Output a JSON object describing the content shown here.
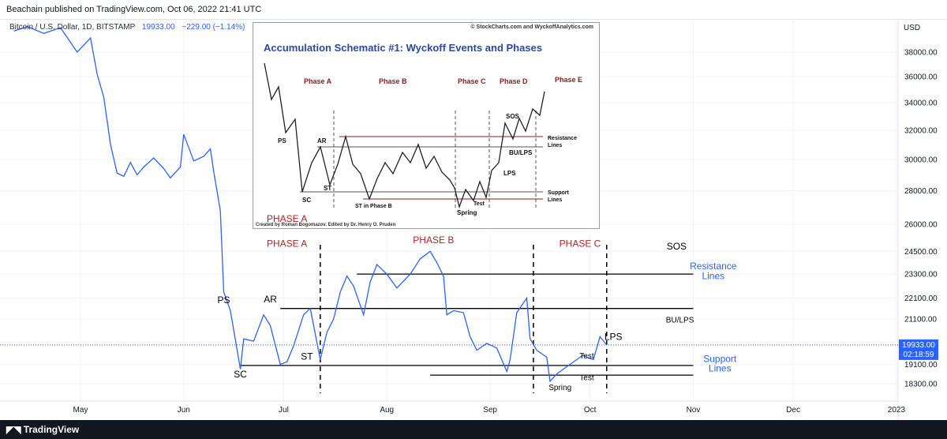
{
  "header": {
    "published": "Beachain published on TradingView.com, Oct 06, 2022 21:41 UTC",
    "symbol": "Bitcoin / U.S. Dollar, 1D, BITSTAMP",
    "price": "19933.00",
    "change": "−229.00 (−1.14%)"
  },
  "footer": {
    "brand": "TradingView"
  },
  "price_axis": {
    "unit": "USD",
    "current_price": "19933.00",
    "countdown": "02:18:59"
  },
  "chart_data": {
    "type": "line",
    "title": "",
    "xlabel": "",
    "ylabel": "USD",
    "log_scale": true,
    "grid": true,
    "x_ticks": [
      "May",
      "Jun",
      "Jul",
      "Aug",
      "Sep",
      "Oct",
      "Nov",
      "Dec",
      "2023"
    ],
    "y_ticks": [
      38000,
      36000,
      34000,
      32000,
      30000,
      28000,
      26000,
      24500,
      23300,
      22100,
      21100,
      19100,
      18300
    ],
    "ylim": [
      17500,
      40000
    ],
    "series": [
      {
        "color": "#2962ff",
        "points": [
          [
            "2022-04-11",
            39800
          ],
          [
            "2022-04-15",
            40200
          ],
          [
            "2022-04-20",
            39600
          ],
          [
            "2022-04-25",
            40100
          ],
          [
            "2022-04-30",
            38000
          ],
          [
            "2022-05-04",
            39200
          ],
          [
            "2022-05-06",
            36200
          ],
          [
            "2022-05-08",
            34400
          ],
          [
            "2022-05-10",
            31000
          ],
          [
            "2022-05-12",
            29100
          ],
          [
            "2022-05-14",
            28900
          ],
          [
            "2022-05-16",
            29800
          ],
          [
            "2022-05-18",
            29000
          ],
          [
            "2022-05-20",
            29500
          ],
          [
            "2022-05-23",
            30100
          ],
          [
            "2022-05-26",
            29400
          ],
          [
            "2022-05-28",
            28800
          ],
          [
            "2022-05-31",
            29500
          ],
          [
            "2022-06-01",
            31700
          ],
          [
            "2022-06-04",
            29900
          ],
          [
            "2022-06-07",
            30200
          ],
          [
            "2022-06-09",
            30700
          ],
          [
            "2022-06-10",
            29200
          ],
          [
            "2022-06-12",
            26800
          ],
          [
            "2022-06-13",
            22400
          ],
          [
            "2022-06-15",
            21500
          ],
          [
            "2022-06-16",
            20600
          ],
          [
            "2022-06-18",
            18900
          ],
          [
            "2022-06-19",
            20200
          ],
          [
            "2022-06-22",
            20100
          ],
          [
            "2022-06-25",
            21300
          ],
          [
            "2022-06-27",
            20800
          ],
          [
            "2022-06-30",
            19100
          ],
          [
            "2022-07-02",
            19200
          ],
          [
            "2022-07-04",
            19900
          ],
          [
            "2022-07-07",
            21300
          ],
          [
            "2022-07-09",
            21600
          ],
          [
            "2022-07-12",
            19300
          ],
          [
            "2022-07-14",
            20500
          ],
          [
            "2022-07-16",
            21100
          ],
          [
            "2022-07-18",
            22400
          ],
          [
            "2022-07-20",
            23200
          ],
          [
            "2022-07-22",
            22700
          ],
          [
            "2022-07-25",
            21300
          ],
          [
            "2022-07-27",
            22900
          ],
          [
            "2022-07-29",
            23800
          ],
          [
            "2022-08-01",
            23300
          ],
          [
            "2022-08-04",
            22600
          ],
          [
            "2022-08-08",
            23300
          ],
          [
            "2022-08-11",
            24100
          ],
          [
            "2022-08-14",
            24500
          ],
          [
            "2022-08-16",
            23900
          ],
          [
            "2022-08-18",
            23200
          ],
          [
            "2022-08-19",
            21300
          ],
          [
            "2022-08-21",
            21500
          ],
          [
            "2022-08-24",
            21400
          ],
          [
            "2022-08-26",
            20300
          ],
          [
            "2022-08-28",
            19700
          ],
          [
            "2022-08-31",
            20000
          ],
          [
            "2022-09-03",
            19800
          ],
          [
            "2022-09-06",
            18800
          ],
          [
            "2022-09-07",
            19300
          ],
          [
            "2022-09-09",
            21400
          ],
          [
            "2022-09-12",
            22100
          ],
          [
            "2022-09-13",
            20200
          ],
          [
            "2022-09-15",
            19700
          ],
          [
            "2022-09-18",
            19400
          ],
          [
            "2022-09-19",
            18400
          ],
          [
            "2022-09-21",
            18700
          ],
          [
            "2022-09-23",
            18900
          ],
          [
            "2022-09-26",
            19200
          ],
          [
            "2022-09-29",
            19500
          ],
          [
            "2022-09-30",
            19400
          ],
          [
            "2022-10-02",
            19300
          ],
          [
            "2022-10-04",
            20300
          ],
          [
            "2022-10-06",
            19930
          ]
        ]
      }
    ],
    "overlay_lines": [
      {
        "name": "Resistance Lines",
        "value": 23300,
        "from": "2022-07-23",
        "to": "2022-11-01"
      },
      {
        "name": "BU/LPS",
        "value": 21600,
        "from": "2022-06-30",
        "to": "2022-11-01"
      },
      {
        "name": "Support Lines",
        "value": 19050,
        "from": "2022-06-18",
        "to": "2022-11-01"
      },
      {
        "name": "Support Lines lower",
        "value": 18650,
        "from": "2022-08-14",
        "to": "2022-11-01"
      }
    ],
    "phase_dividers": [
      {
        "date": "2022-07-12"
      },
      {
        "date": "2022-09-14"
      },
      {
        "date": "2022-10-06"
      }
    ],
    "annotations": [
      {
        "text": "PHASE A",
        "date": "2022-07-02",
        "y": 24750,
        "color": "#b22222"
      },
      {
        "text": "PHASE B",
        "date": "2022-08-15",
        "y": 24950,
        "color": "#b22222"
      },
      {
        "text": "PHASE C",
        "date": "2022-09-28",
        "y": 24750,
        "color": "#b22222"
      },
      {
        "text": "PS",
        "date": "2022-06-13",
        "y": 21850,
        "color": "#000000"
      },
      {
        "text": "AR",
        "date": "2022-06-27",
        "y": 21900,
        "color": "#000000"
      },
      {
        "text": "SC",
        "date": "2022-06-18",
        "y": 18550,
        "color": "#000000"
      },
      {
        "text": "ST",
        "date": "2022-07-08",
        "y": 19300,
        "color": "#000000"
      },
      {
        "text": "SOS",
        "date": "2022-10-27",
        "y": 24600,
        "color": "#000000"
      },
      {
        "text": "BU/LPS",
        "date": "2022-10-28",
        "y": 20950,
        "color": "#000000"
      },
      {
        "text": "LPS",
        "date": "2022-10-08",
        "y": 20150,
        "color": "#000000"
      },
      {
        "text": "Test",
        "date": "2022-09-30",
        "y": 19350,
        "color": "#000000"
      },
      {
        "text": "Test",
        "date": "2022-09-30",
        "y": 18450,
        "color": "#000000"
      },
      {
        "text": "Spring",
        "date": "2022-09-22",
        "y": 18050,
        "color": "#000000"
      },
      {
        "text": "Resistance",
        "date": "2022-11-07",
        "y": 23550,
        "color": "#2962ff"
      },
      {
        "text": "Lines",
        "date": "2022-11-07",
        "y": 23050,
        "color": "#2962ff"
      },
      {
        "text": "Support",
        "date": "2022-11-09",
        "y": 19200,
        "color": "#2962ff"
      },
      {
        "text": "Lines",
        "date": "2022-11-09",
        "y": 18800,
        "color": "#2962ff"
      }
    ]
  },
  "inset": {
    "title": "Accumulation Schematic #1: Wyckoff Events and Phases",
    "copyright": "© StockCharts.com and WyckoffAnalytics.com",
    "credit": "Created by Roman Bogomazov. Edited by Dr. Henry O. Pruden",
    "phase_labels": [
      "Phase A",
      "Phase B",
      "Phase C",
      "Phase D",
      "Phase E"
    ],
    "events": [
      "PS",
      "AR",
      "SC",
      "ST",
      "ST in Phase B",
      "Spring",
      "Test",
      "LPS",
      "BU/LPS",
      "SOS"
    ],
    "resistance_label": [
      "Resistance",
      "Lines"
    ],
    "support_label": [
      "Support",
      "Lines"
    ],
    "overflow_label": "PHASE A"
  }
}
